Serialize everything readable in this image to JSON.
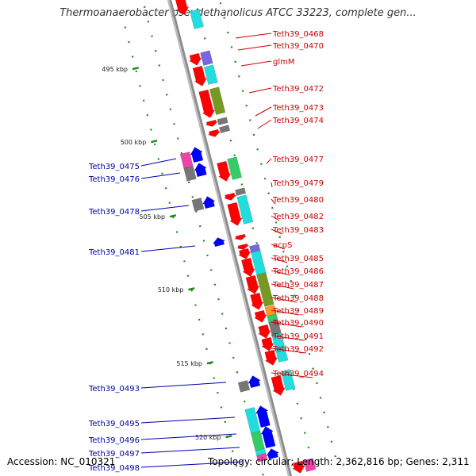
{
  "title": "Thermoanaerobacter pseudethanolicus ATCC 33223, complete gen...",
  "accession": "Accession: NC_010321",
  "summary": "Topology: circular; Length: 2,362,816 bp; Genes: 2,311",
  "colors": {
    "backbone": "#8c8c8c",
    "ruler": "#1a8a1a",
    "forward_label": "#cc0000",
    "reverse_label": "#0000aa",
    "forward_gene": "#ff0000",
    "reverse_gene": "#0000ff",
    "cog_cyan": "#22dddd",
    "cog_olive": "#779922",
    "cog_gray": "#777777",
    "cog_magenta": "#ee44aa",
    "cog_purple": "#7766dd",
    "cog_green": "#33cc66",
    "cog_orange": "#ff9922"
  },
  "ruler_ticks": [
    "495 kbp",
    "500 kbp",
    "505 kbp",
    "510 kbp",
    "515 kbp",
    "520 kbp"
  ],
  "forward_genes": [
    "Teth39_0468",
    "Teth39_0470",
    "glmM",
    "Teth39_0472",
    "Teth39_0473",
    "Teth39_0474",
    "Teth39_0477",
    "Teth39_0479",
    "Teth39_0480",
    "Teth39_0482",
    "Teth39_0483",
    "acpS",
    "Teth39_0485",
    "Teth39_0486",
    "Teth39_0487",
    "Teth39_0488",
    "Teth39_0489",
    "Teth39_0490",
    "Teth39_0491",
    "Teth39_0492",
    "Teth39_0494"
  ],
  "reverse_genes": [
    "Teth39_0475",
    "Teth39_0476",
    "Teth39_0478",
    "Teth39_0481",
    "Teth39_0493",
    "Teth39_0495",
    "Teth39_0496",
    "Teth39_0497",
    "Teth39_0498"
  ]
}
